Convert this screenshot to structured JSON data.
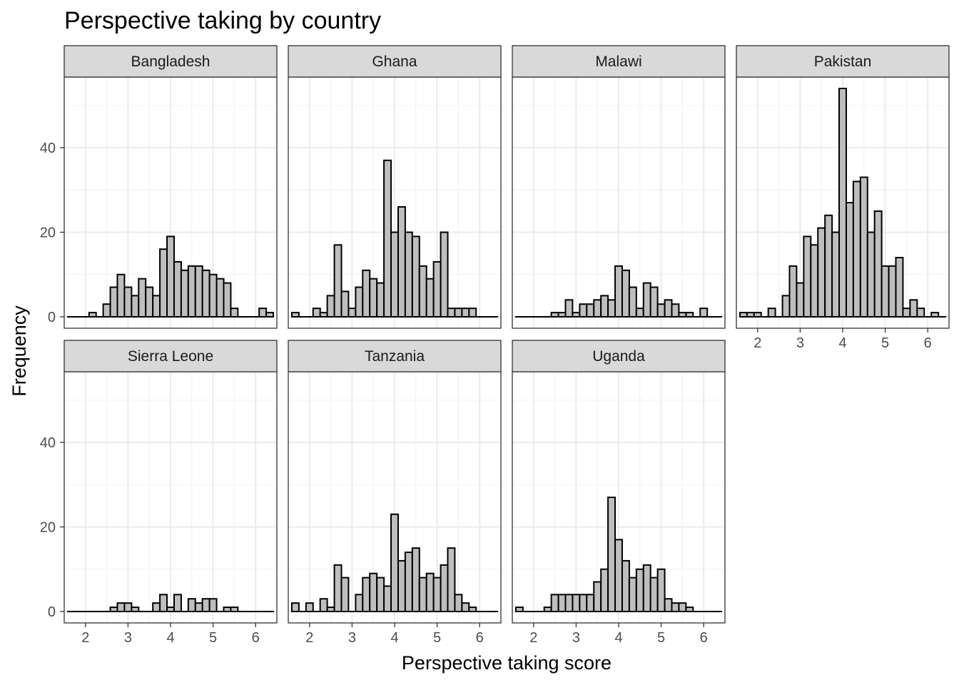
{
  "chart_data": {
    "type": "bar",
    "title": "Perspective taking by country",
    "xlabel": "Perspective taking score",
    "ylabel": "Frequency",
    "xlim": [
      1.5,
      6.5
    ],
    "ylim": [
      -2.7,
      56.7
    ],
    "x_ticks": [
      2,
      3,
      4,
      5,
      6
    ],
    "y_ticks": [
      0,
      20,
      40
    ],
    "grid": true,
    "bin_width": 0.1667,
    "bin_centers": [
      1.667,
      1.833,
      2.0,
      2.167,
      2.333,
      2.5,
      2.667,
      2.833,
      3.0,
      3.167,
      3.333,
      3.5,
      3.667,
      3.833,
      4.0,
      4.167,
      4.333,
      4.5,
      4.667,
      4.833,
      5.0,
      5.167,
      5.333,
      5.5,
      5.667,
      5.833,
      6.0,
      6.167,
      6.333
    ],
    "series": [
      {
        "name": "Bangladesh",
        "values": [
          0,
          0,
          0,
          1,
          0,
          3,
          7,
          10,
          7,
          5,
          9,
          7,
          5,
          16,
          19,
          13,
          11,
          12,
          12,
          11,
          10,
          9,
          8,
          2,
          0,
          0,
          0,
          2,
          1
        ]
      },
      {
        "name": "Ghana",
        "values": [
          1,
          0,
          0,
          2,
          1,
          5,
          17,
          6,
          2,
          7,
          11,
          9,
          8,
          37,
          20,
          26,
          20,
          19,
          12,
          9,
          13,
          20,
          2,
          2,
          2,
          2,
          0,
          0,
          0
        ]
      },
      {
        "name": "Malawi",
        "values": [
          0,
          0,
          0,
          0,
          0,
          1,
          1,
          4,
          1,
          3,
          3,
          4,
          5,
          4,
          12,
          11,
          7,
          2,
          8,
          7,
          3,
          4,
          3,
          1,
          1,
          0,
          2,
          0,
          0
        ]
      },
      {
        "name": "Pakistan",
        "values": [
          1,
          1,
          1,
          0,
          2,
          0,
          5,
          12,
          8,
          19,
          17,
          21,
          24,
          20,
          54,
          27,
          32,
          33,
          20,
          25,
          12,
          12,
          14,
          2,
          4,
          2,
          0,
          1,
          0
        ]
      },
      {
        "name": "Sierra Leone",
        "values": [
          0,
          0,
          0,
          0,
          0,
          0,
          1,
          2,
          2,
          1,
          0,
          0,
          2,
          4,
          1,
          4,
          0,
          3,
          2,
          3,
          3,
          0,
          1,
          1,
          0,
          0,
          0,
          0,
          0
        ]
      },
      {
        "name": "Tanzania",
        "values": [
          2,
          0,
          2,
          0,
          3,
          1,
          11,
          8,
          0,
          4,
          8,
          9,
          8,
          6,
          23,
          12,
          14,
          15,
          8,
          9,
          8,
          11,
          15,
          4,
          2,
          1,
          0,
          0,
          0
        ]
      },
      {
        "name": "Uganda",
        "values": [
          1,
          0,
          0,
          0,
          1,
          4,
          4,
          4,
          4,
          4,
          4,
          7,
          10,
          27,
          17,
          12,
          8,
          10,
          11,
          8,
          10,
          3,
          2,
          2,
          1,
          0,
          0,
          0,
          0
        ]
      }
    ]
  }
}
